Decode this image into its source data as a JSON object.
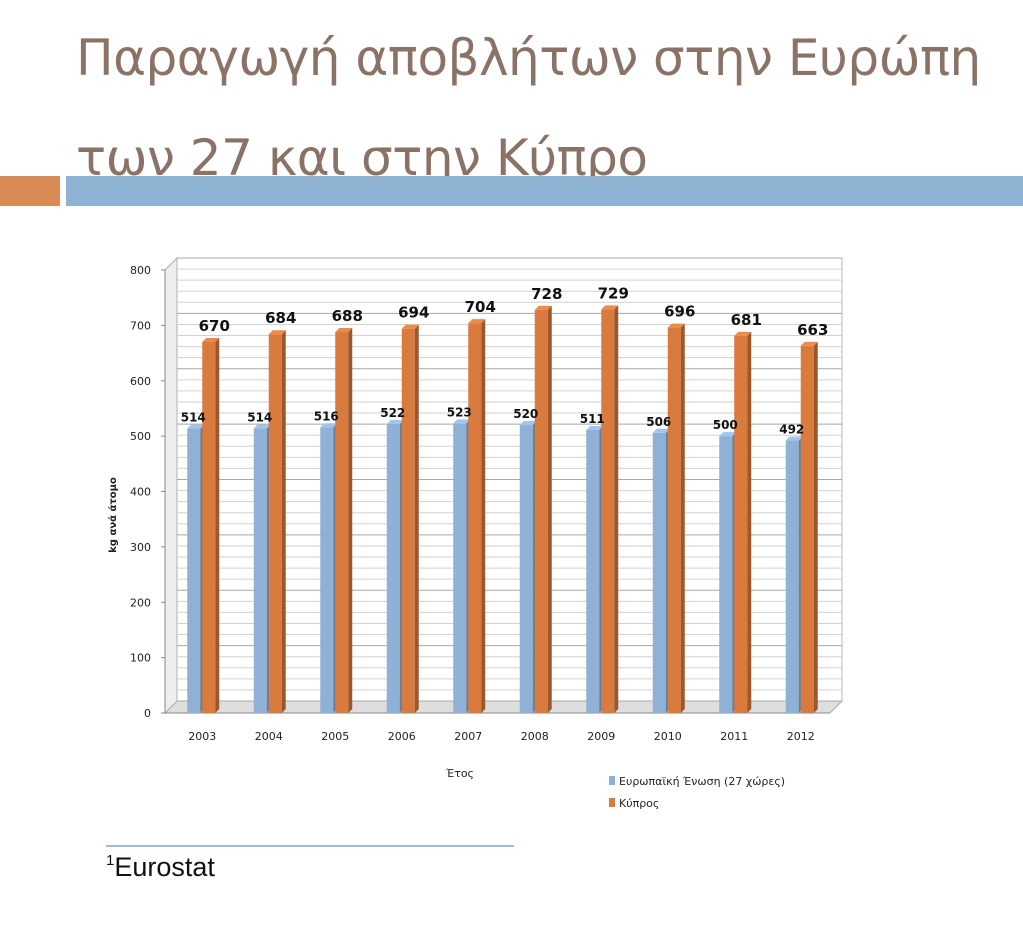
{
  "slide": {
    "title": "Παραγωγή αποβλήτων στην Ευρώπη των 27 και στην Κύπρο",
    "footnote_marker": "1",
    "footnote_text": "Eurostat"
  },
  "colors": {
    "title_text": "#8a7366",
    "accent_orange": "#d98b55",
    "accent_blue": "#8eb2d3",
    "eu_series": "#8fb1d6",
    "cyprus_series": "#d97a3f"
  },
  "chart_data": {
    "type": "bar",
    "categories": [
      "2003",
      "2004",
      "2005",
      "2006",
      "2007",
      "2008",
      "2009",
      "2010",
      "2011",
      "2012"
    ],
    "series": [
      {
        "name": "Ευρωπαϊκή Ένωση (27 χώρες)",
        "values": [
          514,
          514,
          516,
          522,
          523,
          520,
          511,
          506,
          500,
          492
        ]
      },
      {
        "name": "Κύπρος",
        "values": [
          670,
          684,
          688,
          694,
          704,
          728,
          729,
          696,
          681,
          663
        ]
      }
    ],
    "xlabel": "Έτος",
    "ylabel": "kg ανά άτομο",
    "ylim": [
      0,
      800
    ],
    "yticks": [
      0,
      100,
      200,
      300,
      400,
      500,
      600,
      700,
      800
    ],
    "grid": true,
    "legend_position": "bottom-right"
  }
}
